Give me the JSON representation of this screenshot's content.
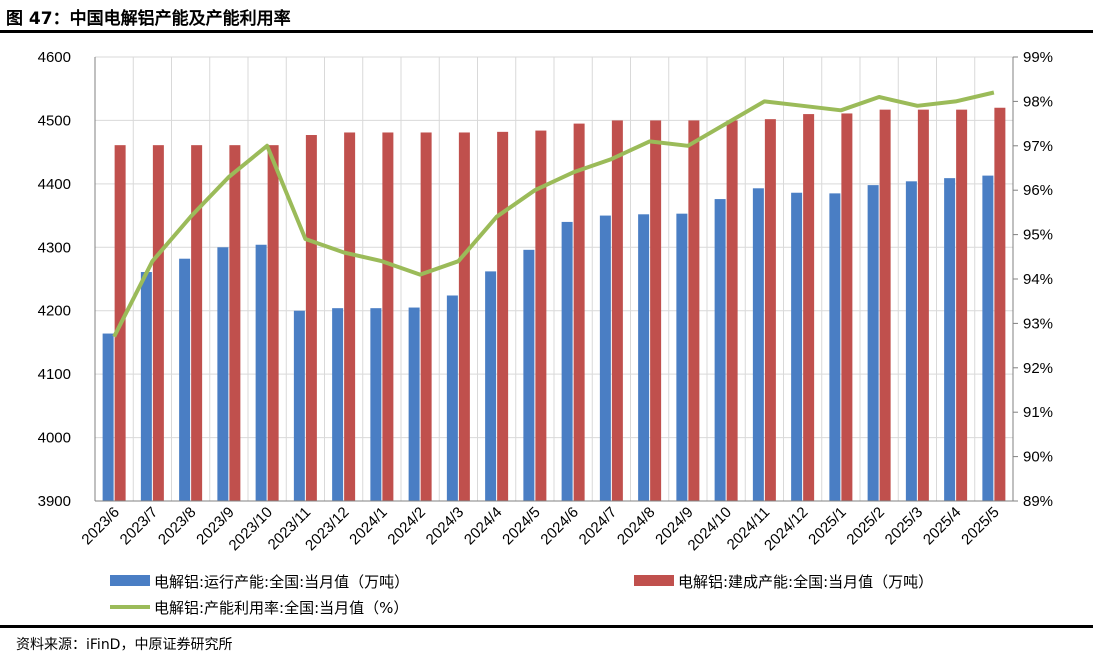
{
  "figure": {
    "title": "图 47：中国电解铝产能及产能利用率",
    "source": "资料来源：iFinD，中原证券研究所"
  },
  "colors": {
    "running": "#4a7ec4",
    "built": "#c0504d",
    "utilization": "#9bbb59"
  },
  "chart_data": {
    "type": "bar",
    "categories": [
      "2023/6",
      "2023/7",
      "2023/8",
      "2023/9",
      "2023/10",
      "2023/11",
      "2023/12",
      "2024/1",
      "2024/2",
      "2024/3",
      "2024/4",
      "2024/5",
      "2024/6",
      "2024/7",
      "2024/8",
      "2024/9",
      "2024/10",
      "2024/11",
      "2024/12",
      "2025/1",
      "2025/2",
      "2025/3",
      "2025/4",
      "2025/5"
    ],
    "series": [
      {
        "name": "电解铝:运行产能:全国:当月值（万吨）",
        "type": "bar",
        "axis": "left",
        "values": [
          4164,
          4261,
          4282,
          4300,
          4304,
          4200,
          4204,
          4204,
          4205,
          4224,
          4262,
          4296,
          4340,
          4350,
          4352,
          4353,
          4376,
          4393,
          4386,
          4385,
          4398,
          4404,
          4409,
          4413
        ]
      },
      {
        "name": "电解铝:建成产能:全国:当月值（万吨）",
        "type": "bar",
        "axis": "left",
        "values": [
          4461,
          4461,
          4461,
          4461,
          4461,
          4477,
          4481,
          4481,
          4481,
          4481,
          4482,
          4484,
          4495,
          4500,
          4500,
          4500,
          4500,
          4502,
          4510,
          4511,
          4517,
          4517,
          4517,
          4520
        ]
      },
      {
        "name": "电解铝:产能利用率:全国:当月值（%）",
        "type": "line",
        "axis": "right",
        "values": [
          92.7,
          94.4,
          95.4,
          96.3,
          97.0,
          94.9,
          94.6,
          94.4,
          94.1,
          94.4,
          95.4,
          96.0,
          96.4,
          96.7,
          97.1,
          97.0,
          97.5,
          98.0,
          97.9,
          97.8,
          98.1,
          97.9,
          98.0,
          98.2
        ]
      }
    ],
    "left_axis": {
      "min": 3900,
      "max": 4600,
      "ticks": [
        "3900",
        "4000",
        "4100",
        "4200",
        "4300",
        "4400",
        "4500",
        "4600"
      ]
    },
    "right_axis": {
      "min": 89,
      "max": 99,
      "ticks": [
        "89%",
        "90%",
        "91%",
        "92%",
        "93%",
        "94%",
        "95%",
        "96%",
        "97%",
        "98%",
        "99%"
      ]
    },
    "grid": "horizontal",
    "legend_position": "bottom"
  }
}
